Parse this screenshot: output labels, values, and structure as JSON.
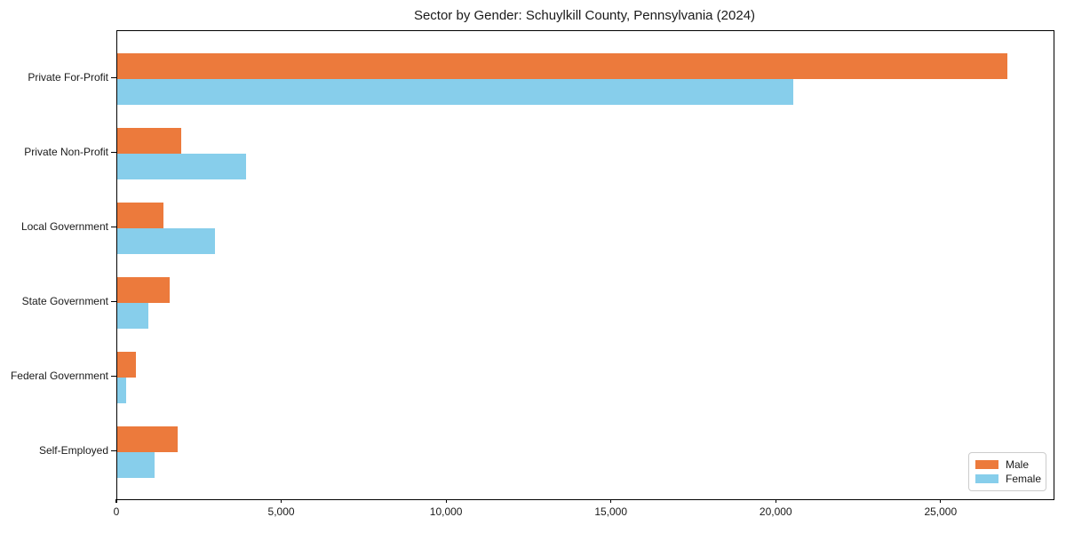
{
  "title": "Sector by Gender: Schuylkill County, Pennsylvania (2024)",
  "chart_data": {
    "type": "bar",
    "orientation": "horizontal",
    "title": "Sector by Gender: Schuylkill County, Pennsylvania (2024)",
    "categories": [
      "Private For-Profit",
      "Private Non-Profit",
      "Local Government",
      "State Government",
      "Federal Government",
      "Self-Employed"
    ],
    "series": [
      {
        "name": "Male",
        "color": "#EC7A3C",
        "values": [
          27000,
          1950,
          1400,
          1600,
          560,
          1820
        ]
      },
      {
        "name": "Female",
        "color": "#87CEEB",
        "values": [
          20500,
          3900,
          2950,
          930,
          270,
          1130
        ]
      }
    ],
    "xlabel": "",
    "ylabel": "",
    "xlim": [
      0,
      28400
    ],
    "x_ticks": [
      0,
      5000,
      10000,
      15000,
      20000,
      25000
    ],
    "x_tick_labels": [
      "0",
      "5,000",
      "10,000",
      "15,000",
      "20,000",
      "25,000"
    ],
    "grid": false,
    "legend": {
      "position": "lower-right",
      "entries": [
        "Male",
        "Female"
      ]
    }
  },
  "colors": {
    "male": "#EC7A3C",
    "female": "#87CEEB",
    "axis": "#000000",
    "background": "#ffffff",
    "legend_border": "#cccccc"
  }
}
